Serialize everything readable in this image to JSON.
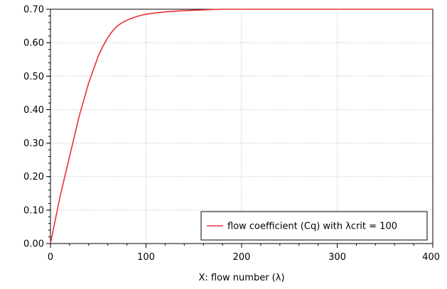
{
  "chart_data": {
    "type": "line",
    "title": "",
    "xlabel": "X: flow number (λ)",
    "ylabel": "",
    "xlim": [
      0,
      400
    ],
    "ylim": [
      0,
      0.7
    ],
    "x_ticks": [
      0,
      100,
      200,
      300,
      400
    ],
    "x_tick_labels": [
      "0",
      "100",
      "200",
      "300",
      "400"
    ],
    "y_ticks": [
      0,
      0.1,
      0.2,
      0.3,
      0.4,
      0.5,
      0.6,
      0.7
    ],
    "y_tick_labels": [
      "0.00",
      "0.10",
      "0.20",
      "0.30",
      "0.40",
      "0.50",
      "0.60",
      "0.70"
    ],
    "grid": true,
    "legend_position": "bottom-right",
    "series": [
      {
        "name": "flow coefficient (Cq) with λcrit = 100",
        "color": "#e8303a",
        "x": [
          0,
          5,
          10,
          15,
          20,
          25,
          30,
          35,
          40,
          45,
          50,
          55,
          60,
          65,
          70,
          75,
          80,
          85,
          90,
          95,
          100,
          110,
          120,
          130,
          140,
          150,
          160,
          170,
          180,
          200,
          250,
          300,
          350,
          400
        ],
        "y": [
          0.0,
          0.07,
          0.14,
          0.2,
          0.26,
          0.32,
          0.38,
          0.43,
          0.48,
          0.52,
          0.56,
          0.59,
          0.615,
          0.635,
          0.65,
          0.66,
          0.667,
          0.673,
          0.678,
          0.682,
          0.685,
          0.689,
          0.692,
          0.694,
          0.696,
          0.697,
          0.698,
          0.699,
          0.7,
          0.7,
          0.7,
          0.7,
          0.7,
          0.7
        ]
      }
    ]
  }
}
